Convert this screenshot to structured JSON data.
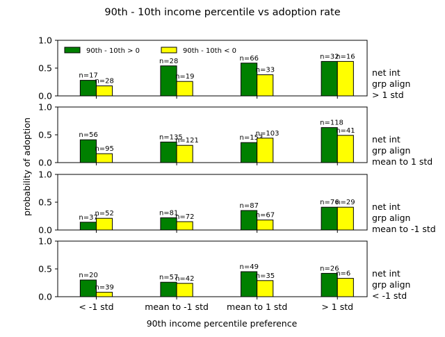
{
  "chart_data": {
    "type": "bar",
    "title": "90th - 10th income percentile vs adoption rate",
    "xlabel": "90th income percentile preference",
    "ylabel": "probability of adoption",
    "categories": [
      "< -1 std",
      "mean to -1 std",
      "mean to 1 std",
      "> 1 std"
    ],
    "ylim": [
      0,
      1
    ],
    "yticks": [
      "0.0",
      "0.5",
      "1.0"
    ],
    "legend": {
      "placement": "top-left",
      "entries": [
        {
          "label": "90th - 10th > 0",
          "color": "#008000"
        },
        {
          "label": "90th - 10th < 0",
          "color": "#ffff00"
        }
      ]
    },
    "colors": {
      "positive": "#008000",
      "negative": "#ffff00",
      "edge": "#000000"
    },
    "panels": [
      {
        "row_label": [
          "net int",
          "grp align",
          "> 1 std"
        ],
        "series": [
          {
            "name": "90th - 10th > 0",
            "values": [
              0.28,
              0.54,
              0.59,
              0.62
            ],
            "counts": [
              "n=17",
              "n=28",
              "n=66",
              "n=32"
            ]
          },
          {
            "name": "90th - 10th < 0",
            "values": [
              0.18,
              0.26,
              0.38,
              0.62
            ],
            "counts": [
              "n=28",
              "n=19",
              "n=33",
              "n=16"
            ]
          }
        ]
      },
      {
        "row_label": [
          "net int",
          "grp align",
          "mean to 1 std"
        ],
        "series": [
          {
            "name": "90th - 10th > 0",
            "values": [
              0.41,
              0.37,
              0.36,
              0.63
            ],
            "counts": [
              "n=56",
              "n=135",
              "n=153",
              "n=118"
            ]
          },
          {
            "name": "90th - 10th < 0",
            "values": [
              0.16,
              0.31,
              0.44,
              0.49
            ],
            "counts": [
              "n=95",
              "n=121",
              "n=103",
              "n=41"
            ]
          }
        ]
      },
      {
        "row_label": [
          "net int",
          "grp align",
          "mean to -1 std"
        ],
        "series": [
          {
            "name": "90th - 10th > 0",
            "values": [
              0.14,
              0.22,
              0.35,
              0.41
            ],
            "counts": [
              "n=37",
              "n=81",
              "n=87",
              "n=76"
            ]
          },
          {
            "name": "90th - 10th < 0",
            "values": [
              0.21,
              0.15,
              0.18,
              0.41
            ],
            "counts": [
              "n=52",
              "n=72",
              "n=67",
              "n=29"
            ]
          }
        ]
      },
      {
        "row_label": [
          "net int",
          "grp align",
          "< -1 std"
        ],
        "series": [
          {
            "name": "90th - 10th > 0",
            "values": [
              0.3,
              0.26,
              0.45,
              0.42
            ],
            "counts": [
              "n=20",
              "n=57",
              "n=49",
              "n=26"
            ]
          },
          {
            "name": "90th - 10th < 0",
            "values": [
              0.08,
              0.24,
              0.29,
              0.33
            ],
            "counts": [
              "n=39",
              "n=42",
              "n=35",
              "n=6"
            ]
          }
        ]
      }
    ]
  }
}
